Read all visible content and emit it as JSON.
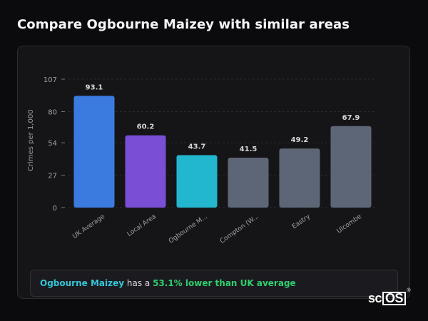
{
  "page": {
    "title": "Compare Ogbourne Maizey with similar areas"
  },
  "summary": {
    "area_name": "Ogbourne Maizey",
    "text_middle": " has a ",
    "stat_text": "53.1% lower than UK average"
  },
  "brand": {
    "sc": "sc",
    "os": "OS",
    "reg": "®"
  },
  "chart_data": {
    "type": "bar",
    "ylabel": "Crimes per 1,000",
    "ylim": [
      0,
      107
    ],
    "yticks": [
      0,
      27,
      54,
      80,
      107
    ],
    "grid": true,
    "categories": [
      "UK Average",
      "Local Area",
      "Ogbourne M...",
      "Compton (W...",
      "Eastry",
      "Ulcombe"
    ],
    "values": [
      93.1,
      60.2,
      43.7,
      41.5,
      49.2,
      67.9
    ],
    "value_labels": [
      "93.1",
      "60.2",
      "43.7",
      "41.5",
      "49.2",
      "67.9"
    ],
    "colors": [
      "#3b7be0",
      "#7a4fd6",
      "#23b7cf",
      "#5d6676",
      "#5d6676",
      "#5d6676"
    ]
  }
}
